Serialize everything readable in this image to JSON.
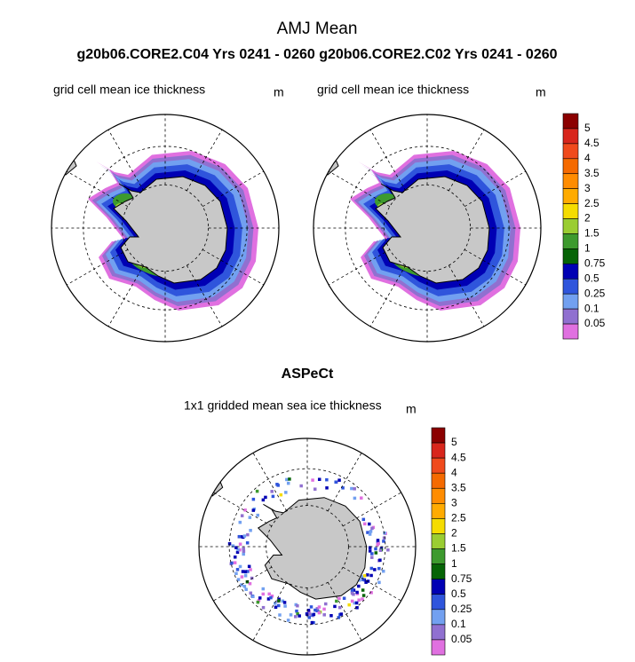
{
  "title": "AMJ Mean",
  "subtitle": "g20b06.CORE2.C04  Yrs 0241 - 0260 g20b06.CORE2.C02  Yrs 0241 - 0260",
  "panels": [
    {
      "label": "grid cell mean ice thickness",
      "units": "m"
    },
    {
      "label": "grid cell mean ice thickness",
      "units": "m"
    },
    {
      "heading": "ASPeCt",
      "label": "1x1 gridded mean sea ice thickness",
      "units": "m"
    }
  ],
  "colorbar": {
    "levels": [
      5,
      4.5,
      4,
      3.5,
      3,
      2.5,
      2,
      1.5,
      1,
      0.75,
      0.5,
      0.25,
      0.1,
      0.05
    ],
    "colors": [
      "#8b0000",
      "#d8261c",
      "#f04a1c",
      "#f56a00",
      "#ff8c00",
      "#ffab00",
      "#f5dc00",
      "#9acd32",
      "#3d9a2e",
      "#066406",
      "#0000b4",
      "#2f55dc",
      "#72a0f0",
      "#9070d0",
      "#e070e0"
    ]
  }
}
